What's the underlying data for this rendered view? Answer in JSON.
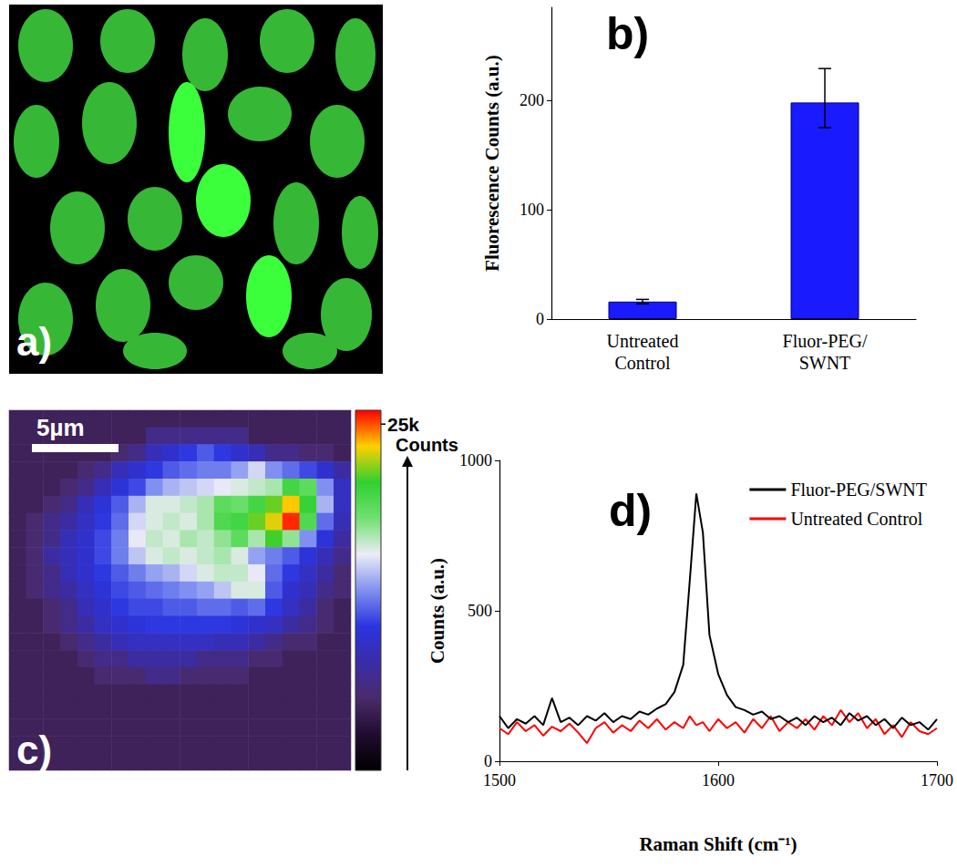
{
  "chart_data": [
    {
      "type": "image",
      "title": "a)"
    },
    {
      "type": "bar",
      "title": "b)",
      "categories": [
        "Untreated\nControl",
        "Fluor-PEG/\nSWNT"
      ],
      "values": [
        16,
        198
      ],
      "error_lower": [
        2,
        23
      ],
      "error_upper": [
        2,
        31
      ],
      "color": "#1a1aff",
      "y_label": "Fluorescence Counts (a.u.)",
      "ylim": [
        0,
        285
      ],
      "yticks": [
        0,
        100,
        200
      ],
      "grid": false
    },
    {
      "type": "heatmap",
      "title": "c)",
      "annotations": [
        "5µm"
      ],
      "cells": [
        [
          4500,
          4500,
          4500,
          4500,
          4500,
          4500,
          4500,
          4500,
          4500,
          4500,
          4500,
          4500,
          4500,
          4500,
          4500,
          4500,
          4500,
          4500,
          4500,
          4500
        ],
        [
          4500,
          4500,
          4500,
          4500,
          4500,
          4500,
          4500,
          4500,
          6500,
          6500,
          6500,
          6500,
          6500,
          6500,
          4500,
          4500,
          4500,
          4500,
          4500,
          4500
        ],
        [
          4500,
          4500,
          4500,
          4500,
          4500,
          4500,
          5500,
          6500,
          8500,
          9500,
          10500,
          11500,
          10500,
          9500,
          8500,
          6500,
          6500,
          5500,
          5500,
          4500
        ],
        [
          4500,
          4500,
          4500,
          4500,
          5500,
          6500,
          8500,
          9500,
          10500,
          11500,
          12000,
          12500,
          12500,
          13500,
          15000,
          13000,
          12000,
          11000,
          9500,
          7500
        ],
        [
          4500,
          4500,
          4500,
          5500,
          6500,
          8500,
          10000,
          11000,
          13000,
          14000,
          14500,
          15000,
          15500,
          16000,
          16500,
          17000,
          20000,
          19000,
          13000,
          9000
        ],
        [
          4500,
          4500,
          5500,
          6500,
          8500,
          10000,
          11500,
          14000,
          16000,
          16000,
          16500,
          17000,
          19000,
          18500,
          20000,
          21500,
          23500,
          20500,
          14000,
          9000
        ],
        [
          4500,
          5500,
          6500,
          7500,
          9000,
          10500,
          12000,
          15000,
          16000,
          16500,
          16000,
          17000,
          19500,
          20000,
          21500,
          23000,
          25500,
          19500,
          12000,
          8500
        ],
        [
          4500,
          5500,
          6500,
          8500,
          9500,
          11000,
          12500,
          15500,
          16500,
          16000,
          17000,
          16500,
          17500,
          19000,
          17000,
          21000,
          17500,
          13000,
          10000,
          7500
        ],
        [
          4500,
          5500,
          7500,
          8500,
          9500,
          11000,
          12500,
          14500,
          16000,
          16500,
          16000,
          16500,
          17000,
          16000,
          13500,
          12500,
          11500,
          10000,
          8500,
          6500
        ],
        [
          4500,
          5500,
          6500,
          8500,
          9500,
          10500,
          11500,
          12500,
          13500,
          14000,
          15000,
          16000,
          16500,
          16500,
          15500,
          12000,
          10500,
          9000,
          7500,
          5500
        ],
        [
          4500,
          5500,
          6500,
          7500,
          9000,
          10000,
          11000,
          11500,
          12000,
          12500,
          13000,
          13500,
          14500,
          16000,
          16000,
          11500,
          9500,
          8500,
          6500,
          5500
        ],
        [
          4500,
          4500,
          5500,
          6500,
          8500,
          9500,
          10500,
          11000,
          11000,
          11500,
          11500,
          12000,
          12000,
          11500,
          12000,
          10500,
          9000,
          7500,
          5500,
          4500
        ],
        [
          4500,
          4500,
          5500,
          6500,
          7500,
          9000,
          9500,
          10000,
          10500,
          10500,
          10500,
          10500,
          10500,
          10000,
          9500,
          9000,
          7500,
          6500,
          5500,
          4500
        ],
        [
          4500,
          4500,
          4500,
          5500,
          6500,
          7500,
          8500,
          9000,
          9000,
          9000,
          9000,
          9000,
          8500,
          8500,
          7500,
          6500,
          5500,
          5500,
          4500,
          4500
        ],
        [
          4500,
          4500,
          4500,
          4500,
          5500,
          6500,
          6500,
          7500,
          7500,
          7500,
          7500,
          6500,
          6500,
          6500,
          5500,
          5500,
          4500,
          4500,
          4500,
          4500
        ],
        [
          4500,
          4500,
          4500,
          4500,
          4500,
          5500,
          5500,
          5500,
          6500,
          6500,
          5500,
          5500,
          5500,
          5500,
          4500,
          4500,
          4500,
          4500,
          4500,
          4500
        ],
        [
          4500,
          4500,
          4500,
          4500,
          4500,
          4500,
          4500,
          4500,
          4500,
          4500,
          4500,
          4500,
          4500,
          4500,
          4500,
          4500,
          4500,
          4500,
          4500,
          4500
        ],
        [
          4500,
          4500,
          4500,
          4500,
          4500,
          4500,
          4500,
          4500,
          4500,
          4500,
          4500,
          4500,
          4500,
          4500,
          4500,
          4500,
          4500,
          4500,
          4500,
          4500
        ],
        [
          4500,
          4500,
          4500,
          4500,
          4500,
          4500,
          4500,
          4500,
          4500,
          4500,
          4500,
          4500,
          4500,
          4500,
          4500,
          4500,
          4500,
          4500,
          4500,
          4500
        ],
        [
          4500,
          4500,
          4500,
          4500,
          4500,
          4500,
          4500,
          4500,
          4500,
          4500,
          4500,
          4500,
          4500,
          4500,
          4500,
          4500,
          4500,
          4500,
          4500,
          4500
        ],
        [
          4500,
          4500,
          4500,
          4500,
          4500,
          4500,
          4500,
          4500,
          4500,
          4500,
          4500,
          4500,
          4500,
          4500,
          4500,
          4500,
          4500,
          4500,
          4500,
          4500
        ]
      ],
      "colorbar": {
        "range": [
          0,
          26000
        ],
        "ticks": [
          {
            "value": 25000,
            "label": "25k"
          }
        ],
        "label": "Counts"
      },
      "tick_labels": false
    },
    {
      "type": "line",
      "title": "d)",
      "x": [
        1500,
        1504,
        1508,
        1512,
        1516,
        1520,
        1524,
        1528,
        1532,
        1536,
        1540,
        1544,
        1548,
        1552,
        1556,
        1560,
        1564,
        1568,
        1572,
        1576,
        1580,
        1584,
        1587,
        1590,
        1593,
        1596,
        1600,
        1604,
        1608,
        1612,
        1616,
        1620,
        1624,
        1628,
        1632,
        1636,
        1640,
        1644,
        1648,
        1652,
        1656,
        1660,
        1664,
        1668,
        1672,
        1676,
        1680,
        1684,
        1688,
        1692,
        1696,
        1700
      ],
      "series": [
        {
          "name": "Fluor-PEG/SWNT",
          "color": "#000000",
          "values": [
            150,
            110,
            140,
            125,
            150,
            120,
            210,
            130,
            145,
            120,
            150,
            135,
            160,
            130,
            150,
            140,
            165,
            155,
            175,
            190,
            230,
            320,
            600,
            890,
            760,
            420,
            290,
            220,
            180,
            170,
            155,
            165,
            140,
            150,
            130,
            145,
            120,
            150,
            130,
            145,
            120,
            160,
            135,
            150,
            120,
            140,
            110,
            145,
            120,
            130,
            105,
            140
          ]
        },
        {
          "name": "Untreated Control",
          "color": "#ff0000",
          "values": [
            110,
            90,
            130,
            100,
            120,
            85,
            115,
            100,
            125,
            95,
            60,
            110,
            130,
            95,
            120,
            100,
            135,
            110,
            140,
            105,
            130,
            110,
            150,
            120,
            130,
            100,
            140,
            110,
            130,
            95,
            140,
            110,
            150,
            100,
            130,
            110,
            140,
            105,
            150,
            120,
            170,
            130,
            160,
            110,
            140,
            90,
            120,
            80,
            130,
            100,
            90,
            110
          ]
        }
      ],
      "x_label": "Raman Shift (cm⁻¹)",
      "y_label": "Counts (a.u.)",
      "xlim": [
        1500,
        1700
      ],
      "xticks": [
        1500,
        1600,
        1700
      ],
      "ylim": [
        0,
        1000
      ],
      "yticks": [
        0,
        500,
        1000
      ],
      "legend": "upper right",
      "grid": false
    }
  ]
}
